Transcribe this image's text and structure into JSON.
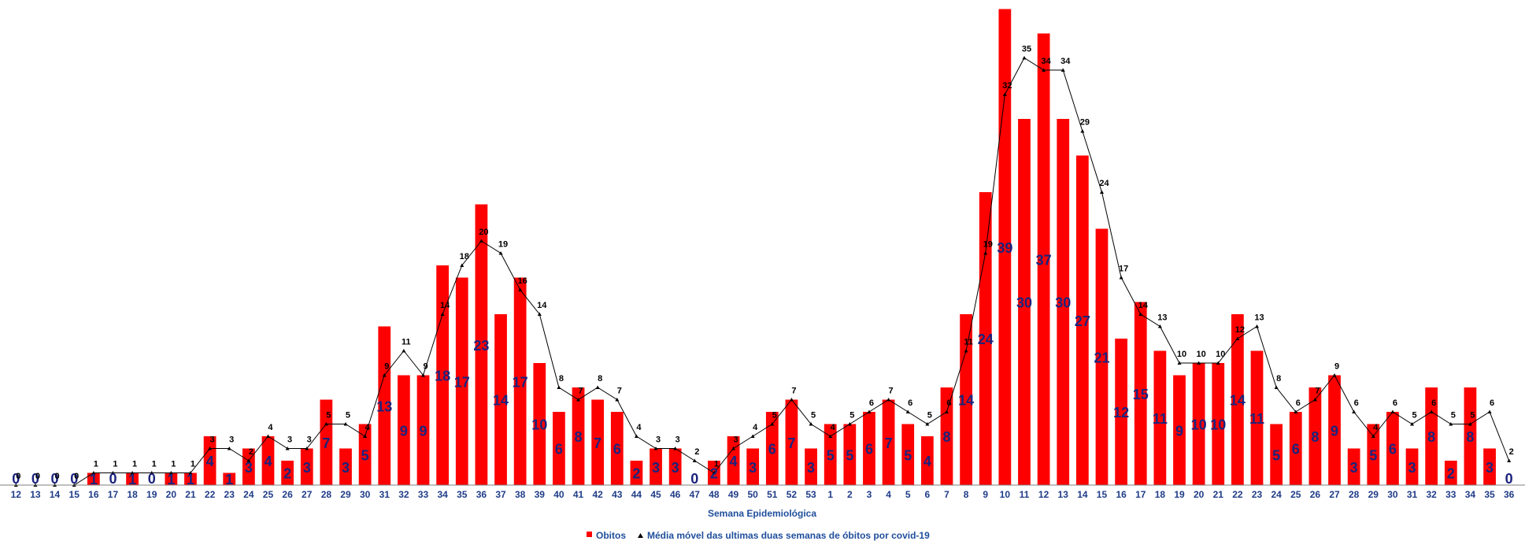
{
  "chart_data": {
    "type": "bar",
    "xlabel": "Semana Epidemiológica",
    "categories": [
      "12",
      "13",
      "14",
      "15",
      "16",
      "17",
      "18",
      "19",
      "20",
      "21",
      "22",
      "23",
      "24",
      "25",
      "26",
      "27",
      "28",
      "29",
      "30",
      "31",
      "32",
      "33",
      "34",
      "35",
      "36",
      "37",
      "38",
      "39",
      "40",
      "41",
      "42",
      "43",
      "44",
      "45",
      "46",
      "47",
      "48",
      "49",
      "50",
      "51",
      "52",
      "53",
      "1",
      "2",
      "3",
      "4",
      "5",
      "6",
      "7",
      "8",
      "9",
      "10",
      "11",
      "12",
      "13",
      "14",
      "15",
      "16",
      "17",
      "18",
      "19",
      "20",
      "21",
      "22",
      "23",
      "24",
      "25",
      "26",
      "27",
      "28",
      "29",
      "30",
      "31",
      "32",
      "33",
      "34",
      "35",
      "36"
    ],
    "series": [
      {
        "name": "Obitos",
        "type": "bar",
        "color": "#ff0000",
        "values": [
          0,
          0,
          0,
          0,
          1,
          0,
          1,
          0,
          1,
          1,
          4,
          1,
          3,
          4,
          2,
          3,
          7,
          3,
          5,
          13,
          9,
          9,
          18,
          17,
          23,
          14,
          17,
          10,
          6,
          8,
          7,
          6,
          2,
          3,
          3,
          0,
          2,
          4,
          3,
          6,
          7,
          3,
          5,
          5,
          6,
          7,
          5,
          4,
          8,
          14,
          24,
          39,
          30,
          37,
          30,
          27,
          21,
          12,
          15,
          11,
          9,
          10,
          10,
          14,
          11,
          5,
          6,
          8,
          9,
          3,
          5,
          6,
          3,
          8,
          2,
          8,
          3,
          0
        ]
      },
      {
        "name": "Média móvel das ultimas duas semanas de óbitos por covid-19",
        "type": "line",
        "color": "#000000",
        "values": [
          0,
          0,
          0,
          0,
          1,
          1,
          1,
          1,
          1,
          1,
          3,
          3,
          2,
          4,
          3,
          3,
          5,
          5,
          4,
          9,
          11,
          9,
          14,
          18,
          20,
          19,
          16,
          14,
          8,
          7,
          8,
          7,
          4,
          3,
          3,
          2,
          1,
          3,
          4,
          5,
          7,
          5,
          4,
          5,
          6,
          7,
          6,
          5,
          6,
          11,
          19,
          32,
          35,
          34,
          34,
          29,
          24,
          17,
          14,
          13,
          10,
          10,
          10,
          12,
          13,
          8,
          6,
          7,
          9,
          6,
          4,
          6,
          5,
          6,
          5,
          5,
          6,
          2
        ]
      }
    ],
    "ylim": [
      0,
      40
    ],
    "grid": false,
    "legend_position": "bottom-center"
  }
}
